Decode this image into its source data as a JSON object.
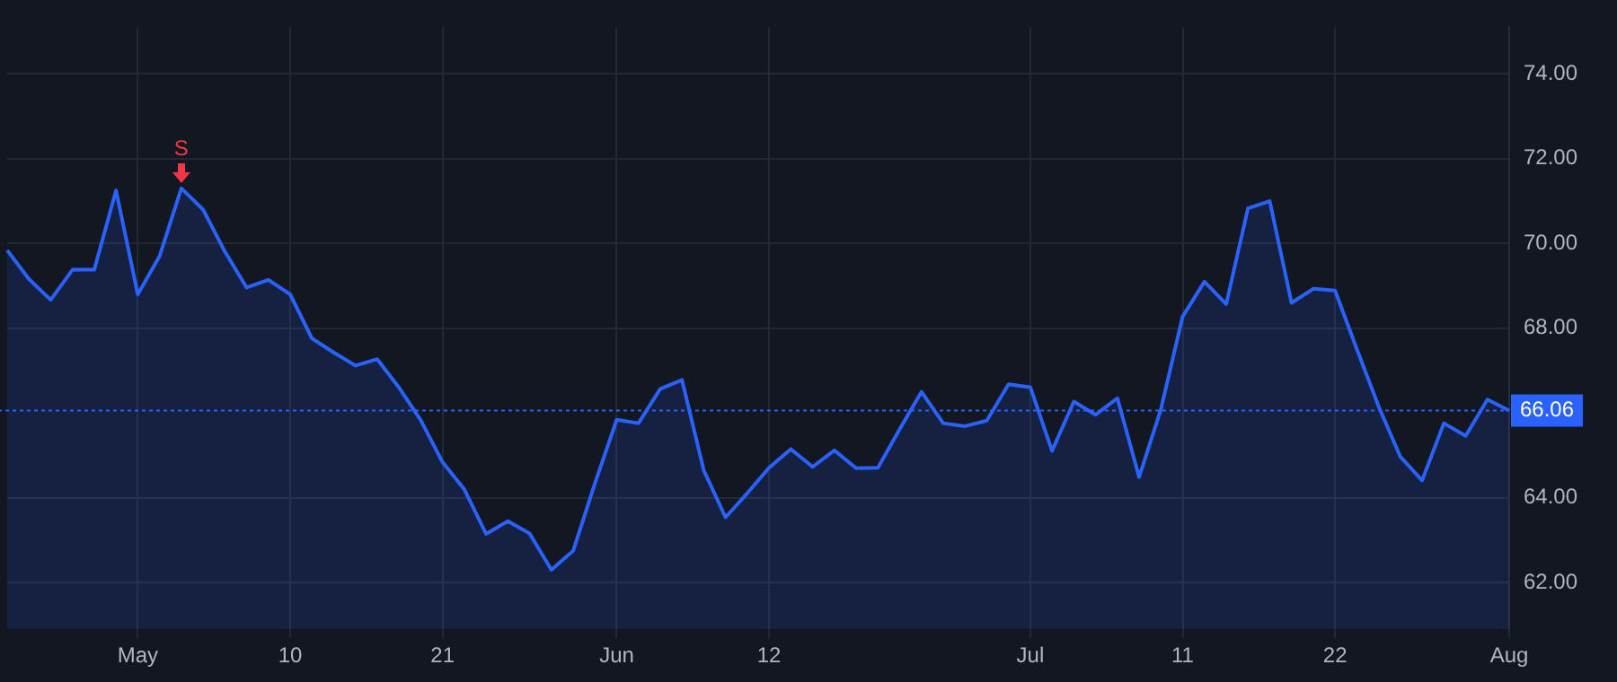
{
  "chart_data": {
    "type": "area",
    "categories": [
      null,
      null,
      null,
      null,
      null,
      null,
      "May",
      null,
      null,
      null,
      null,
      null,
      null,
      "10",
      null,
      null,
      null,
      null,
      null,
      null,
      "21",
      null,
      null,
      null,
      null,
      null,
      null,
      null,
      "Jun",
      null,
      null,
      null,
      null,
      null,
      null,
      "12",
      null,
      null,
      null,
      null,
      null,
      null,
      null,
      null,
      null,
      null,
      null,
      "Jul",
      null,
      null,
      null,
      null,
      null,
      null,
      "11",
      null,
      null,
      null,
      null,
      null,
      null,
      "22",
      null,
      null,
      null,
      null,
      null,
      null,
      null,
      "Aug"
    ],
    "series": [
      {
        "color": "#2962ff",
        "values": [
          69.84,
          69.16,
          68.67,
          69.38,
          69.38,
          71.25,
          68.8,
          69.7,
          71.3,
          70.8,
          69.81,
          68.96,
          69.14,
          68.8,
          67.76,
          67.43,
          67.12,
          67.27,
          66.6,
          65.83,
          64.84,
          64.2,
          63.15,
          63.45,
          63.16,
          62.3,
          62.75,
          64.34,
          65.84,
          65.76,
          66.57,
          66.78,
          64.65,
          63.54,
          64.11,
          64.71,
          65.15,
          64.73,
          65.12,
          64.7,
          64.71,
          65.62,
          66.5,
          65.76,
          65.69,
          65.82,
          66.68,
          66.61,
          65.11,
          66.27,
          65.96,
          66.35,
          64.49,
          66.09,
          68.28,
          69.1,
          68.57,
          70.83,
          71.0,
          68.6,
          68.93,
          68.89,
          67.51,
          66.16,
          64.97,
          64.41,
          65.76,
          65.46,
          66.32,
          66.06
        ]
      }
    ],
    "ylim": [
      60.9,
      75.1
    ],
    "yticks": [
      {
        "value": 62,
        "label": "62.00"
      },
      {
        "value": 64,
        "label": "64.00"
      },
      {
        "value": 68,
        "label": "68.00"
      },
      {
        "value": 70,
        "label": "70.00"
      },
      {
        "value": 72,
        "label": "72.00"
      },
      {
        "value": 74,
        "label": "74.00"
      }
    ],
    "ref_lines": [
      {
        "axis": "y",
        "value": 66.06,
        "label": "66.06",
        "color": "#2962ff",
        "line_style": "dotted"
      }
    ],
    "annotations": [
      {
        "text": "S",
        "y": 71.3
      }
    ],
    "grid": true,
    "legend": false,
    "marker": "none",
    "line_style": "solid"
  }
}
